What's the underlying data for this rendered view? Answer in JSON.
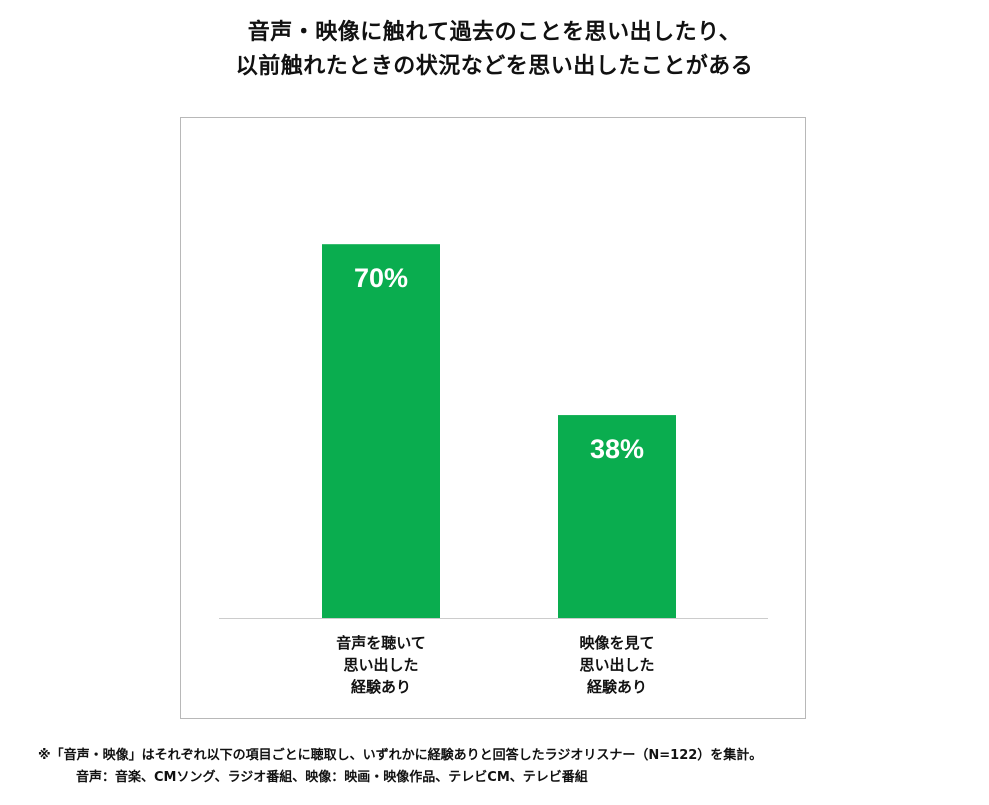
{
  "title_lines": [
    "音声・映像に触れて過去のことを思い出したり、",
    "以前触れたときの状況などを思い出したことがある"
  ],
  "colors": {
    "bar": "#0aad4f",
    "bar_label": "#ffffff",
    "baseline": "#cccccc",
    "frame": "#b8b8b8"
  },
  "chart_data": {
    "type": "bar",
    "title": "音声・映像に触れて過去のことを思い出したり、以前触れたときの状況などを思い出したことがある",
    "categories": [
      [
        "音声を聴いて",
        "思い出した",
        "経験あり"
      ],
      [
        "映像を見て",
        "思い出した",
        "経験あり"
      ]
    ],
    "values": [
      70,
      38
    ],
    "data_labels": [
      "70%",
      "38%"
    ],
    "unit": "%",
    "ylim": [
      0,
      100
    ],
    "grid": false,
    "legend": "none"
  },
  "footnote": {
    "line1": "※「音声・映像」はそれぞれ以下の項目ごとに聴取し、いずれかに経験ありと回答したラジオリスナー（N=122）を集計。",
    "line2": "音声：音楽、CMソング、ラジオ番組、映像：映画・映像作品、テレビCM、テレビ番組"
  }
}
